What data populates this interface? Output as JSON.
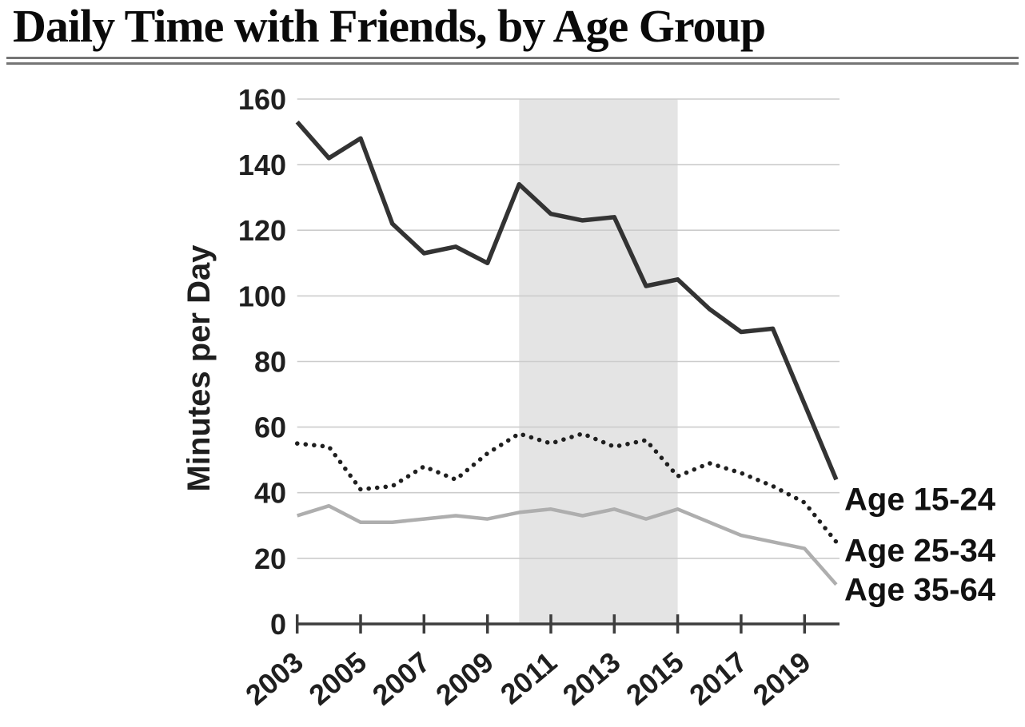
{
  "chart_data": {
    "type": "line",
    "title": "Daily Time with Friends, by Age Group",
    "ylabel": "Minutes per Day",
    "xlabel": "",
    "ylim": [
      0,
      160
    ],
    "yticks": [
      0,
      20,
      40,
      60,
      80,
      100,
      120,
      140,
      160
    ],
    "xticks": [
      2003,
      2005,
      2007,
      2009,
      2011,
      2013,
      2015,
      2017,
      2019
    ],
    "grid": true,
    "legend_position": "right-end-labels",
    "x": [
      2003,
      2004,
      2005,
      2006,
      2007,
      2008,
      2009,
      2010,
      2011,
      2012,
      2013,
      2014,
      2015,
      2016,
      2017,
      2018,
      2019,
      2020
    ],
    "series": [
      {
        "name": "Age 15-24",
        "style": "solid",
        "color": "#333333",
        "width": 5.5,
        "values": [
          153,
          142,
          148,
          122,
          113,
          115,
          110,
          134,
          125,
          123,
          124,
          103,
          105,
          96,
          89,
          90,
          67,
          44
        ]
      },
      {
        "name": "Age 25-34",
        "style": "dotted",
        "color": "#1f1f1f",
        "width": 5.5,
        "values": [
          55,
          54,
          41,
          42,
          48,
          44,
          52,
          58,
          55,
          58,
          54,
          56,
          45,
          49,
          46,
          42,
          37,
          25
        ]
      },
      {
        "name": "Age 35-64",
        "style": "solid",
        "color": "#aeaeae",
        "width": 4.5,
        "values": [
          33,
          36,
          31,
          31,
          32,
          33,
          32,
          34,
          35,
          33,
          35,
          32,
          35,
          31,
          27,
          25,
          23,
          12
        ]
      }
    ],
    "shaded_region": {
      "from": 2010,
      "to": 2015,
      "color": "#e4e4e4"
    },
    "colors": {
      "gridline": "#cccccc",
      "axis": "#3d3d3d",
      "text": "#1f1f1f",
      "background": "#ffffff"
    }
  }
}
